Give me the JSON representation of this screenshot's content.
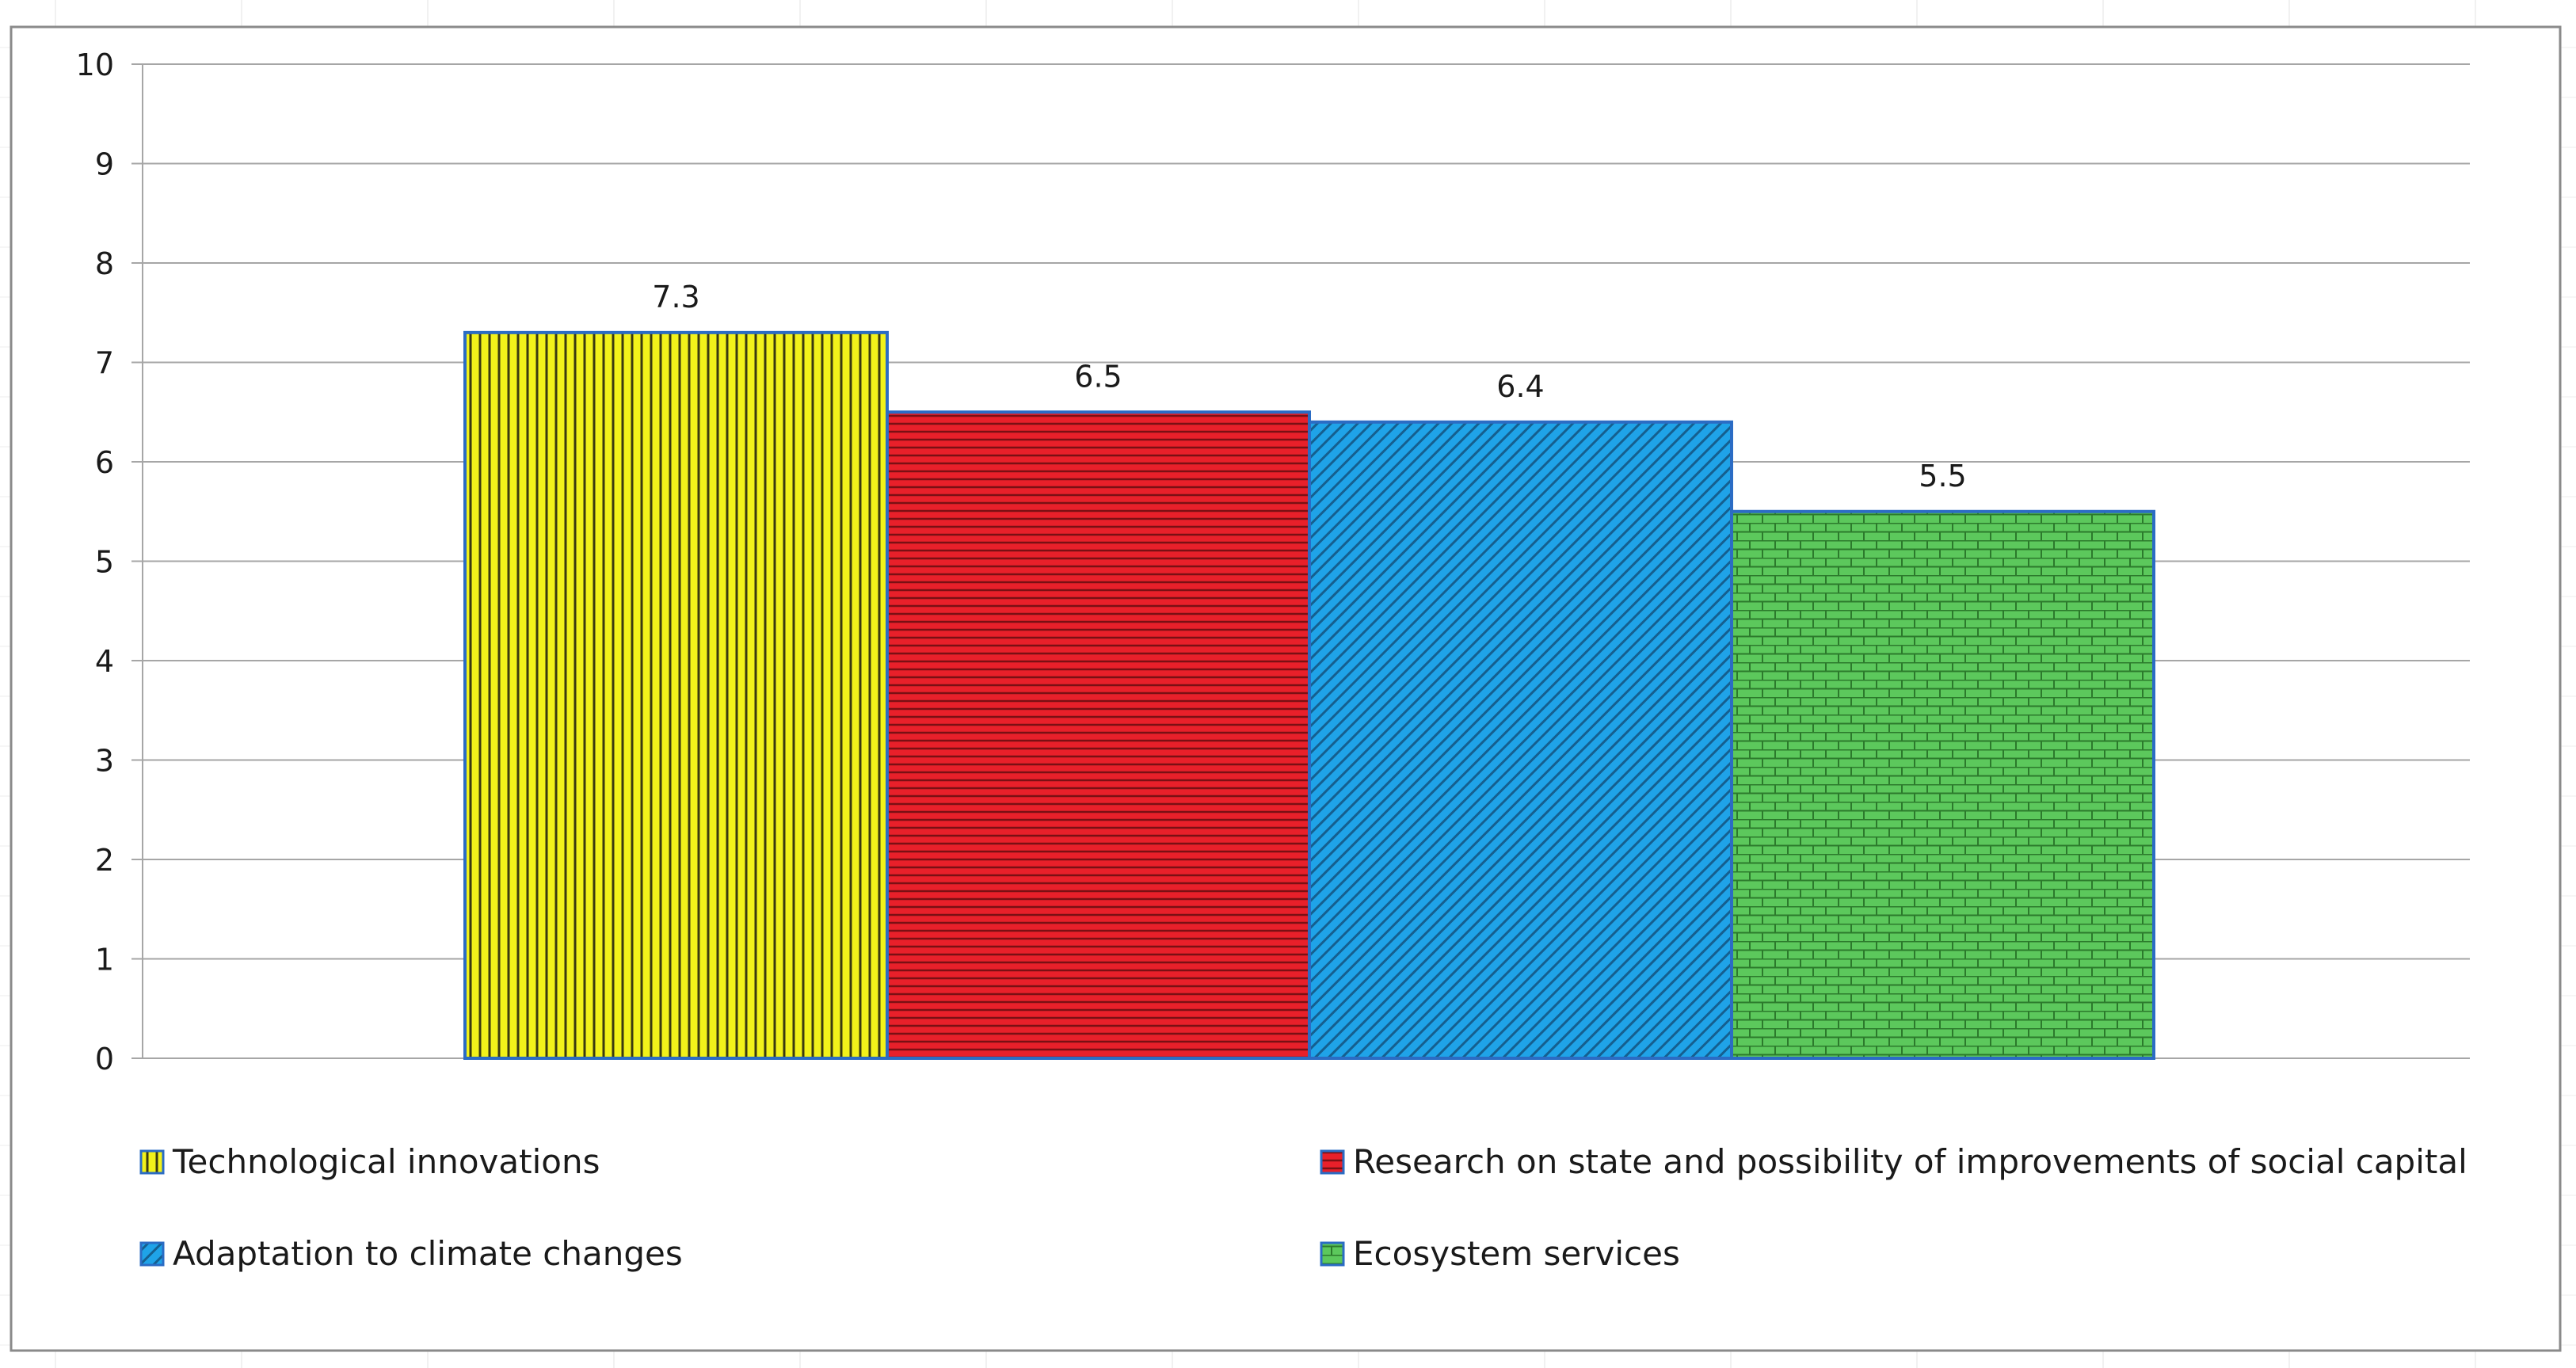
{
  "chart_data": {
    "type": "bar",
    "title": "",
    "xlabel": "",
    "ylabel": "",
    "ylim": [
      0,
      10
    ],
    "yticks": [
      "0",
      "1",
      "2",
      "3",
      "4",
      "5",
      "6",
      "7",
      "8",
      "9",
      "10"
    ],
    "grid": true,
    "legend_position": "bottom",
    "series": [
      {
        "name": "Technological innovations",
        "value": 7.3,
        "label": "7.3",
        "color": "#f2f21a",
        "pattern": "vertical-lines"
      },
      {
        "name": "Research on state and possibility of improvements of social capital",
        "value": 6.5,
        "label": "6.5",
        "color": "#e8202a",
        "pattern": "horizontal-lines"
      },
      {
        "name": "Adaptation to climate changes",
        "value": 6.4,
        "label": "6.4",
        "color": "#1fa3e8",
        "pattern": "diagonal-lines"
      },
      {
        "name": "Ecosystem services",
        "value": 5.5,
        "label": "5.5",
        "color": "#5cc85c",
        "pattern": "bricks"
      }
    ]
  },
  "colors": {
    "bar_outline": "#2b6cc4",
    "frame_border": "#8a8a8a",
    "gridline": "#a6a6a6",
    "text": "#1a1a1a"
  }
}
